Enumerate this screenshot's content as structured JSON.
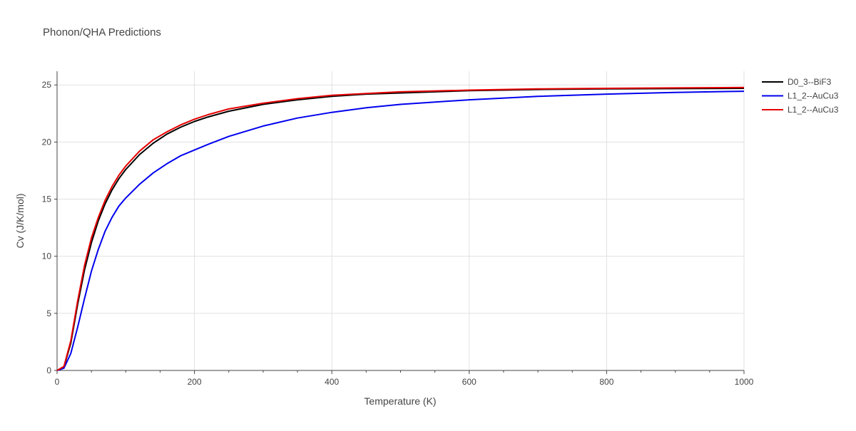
{
  "chart_data": {
    "type": "line",
    "title": "Phonon/QHA Predictions",
    "xlabel": "Temperature (K)",
    "ylabel": "Cv (J/K/mol)",
    "xlim": [
      0,
      1000
    ],
    "ylim": [
      0,
      26.2
    ],
    "xticks": [
      0,
      200,
      400,
      600,
      800,
      1000
    ],
    "yticks": [
      0,
      5,
      10,
      15,
      20,
      25
    ],
    "grid": true,
    "legend_position": "top-right",
    "series": [
      {
        "name": "D0_3--BiF3",
        "color": "#000000",
        "x": [
          0,
          10,
          20,
          30,
          40,
          50,
          60,
          70,
          80,
          90,
          100,
          120,
          140,
          160,
          180,
          200,
          220,
          250,
          300,
          350,
          400,
          450,
          500,
          600,
          700,
          800,
          900,
          1000
        ],
        "y": [
          0,
          0.3,
          2.4,
          5.8,
          8.8,
          11.2,
          13.1,
          14.6,
          15.8,
          16.8,
          17.6,
          18.9,
          19.9,
          20.7,
          21.3,
          21.8,
          22.2,
          22.7,
          23.3,
          23.7,
          24.0,
          24.2,
          24.3,
          24.5,
          24.6,
          24.65,
          24.68,
          24.7
        ]
      },
      {
        "name": "L1_2--AuCu3",
        "color": "#0000ee",
        "x": [
          0,
          10,
          20,
          30,
          40,
          50,
          60,
          70,
          80,
          90,
          100,
          120,
          140,
          160,
          180,
          200,
          220,
          250,
          300,
          350,
          400,
          450,
          500,
          600,
          700,
          800,
          900,
          1000
        ],
        "y": [
          0,
          0.2,
          1.5,
          3.8,
          6.3,
          8.7,
          10.6,
          12.2,
          13.4,
          14.4,
          15.1,
          16.3,
          17.3,
          18.1,
          18.8,
          19.3,
          19.8,
          20.5,
          21.4,
          22.1,
          22.6,
          23.0,
          23.3,
          23.7,
          24.0,
          24.2,
          24.35,
          24.45
        ]
      },
      {
        "name": "L1_2--AuCu3",
        "color": "#e60000",
        "x": [
          0,
          10,
          20,
          30,
          40,
          50,
          60,
          70,
          80,
          90,
          100,
          120,
          140,
          160,
          180,
          200,
          220,
          250,
          300,
          350,
          400,
          450,
          500,
          600,
          700,
          800,
          900,
          1000
        ],
        "y": [
          0,
          0.35,
          2.6,
          6.1,
          9.2,
          11.6,
          13.4,
          14.9,
          16.1,
          17.1,
          17.9,
          19.2,
          20.2,
          20.9,
          21.5,
          22.0,
          22.4,
          22.9,
          23.4,
          23.8,
          24.1,
          24.25,
          24.4,
          24.55,
          24.65,
          24.7,
          24.74,
          24.78
        ]
      }
    ]
  }
}
